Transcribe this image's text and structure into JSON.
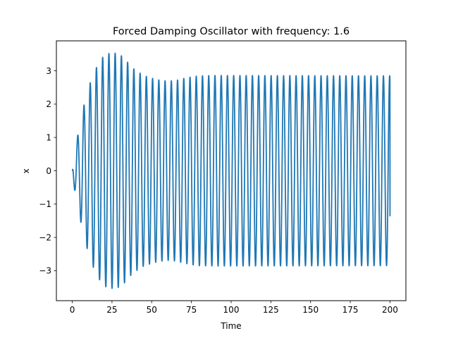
{
  "chart_data": {
    "type": "line",
    "title": "Forced Damping Oscillator with frequency: 1.6",
    "xlabel": "Time",
    "ylabel": "x",
    "xlim": [
      -10,
      210
    ],
    "ylim": [
      -3.9,
      3.9
    ],
    "xticks": [
      0,
      25,
      50,
      75,
      100,
      125,
      150,
      175,
      200
    ],
    "yticks": [
      -3,
      -2,
      -1,
      0,
      1,
      2,
      3
    ],
    "ytick_labels": [
      "−3",
      "−2",
      "−1",
      "0",
      "1",
      "2",
      "3"
    ],
    "grid": false,
    "series": [
      {
        "color": "#1f77b4",
        "model": {
          "t_start": 0,
          "t_end": 200,
          "forcing_frequency": 1.6,
          "steady_amplitude": 2.85,
          "final_value": -1.37
        },
        "samples": [
          {
            "t": 0,
            "x": 0.0
          },
          {
            "t": 0.9,
            "x": 0.36
          },
          {
            "t": 2.5,
            "x": -0.92
          },
          {
            "t": 5.0,
            "x": 1.42
          },
          {
            "t": 6.8,
            "x": -1.88
          },
          {
            "t": 9.0,
            "x": 2.27
          },
          {
            "t": 11.0,
            "x": -2.6
          },
          {
            "t": 12.9,
            "x": 2.86
          },
          {
            "t": 14.8,
            "x": -3.07
          },
          {
            "t": 16.8,
            "x": 3.25
          },
          {
            "t": 18.9,
            "x": -3.4
          },
          {
            "t": 21.0,
            "x": 3.48
          },
          {
            "t": 23.0,
            "x": -3.52
          },
          {
            "t": 25.0,
            "x": 3.53
          },
          {
            "t": 27.0,
            "x": -3.53
          },
          {
            "t": 29.0,
            "x": 3.5
          },
          {
            "t": 31.0,
            "x": -3.45
          },
          {
            "t": 33.0,
            "x": 3.36
          },
          {
            "t": 35.0,
            "x": -3.25
          },
          {
            "t": 37.0,
            "x": 3.12
          },
          {
            "t": 39.0,
            "x": -3.05
          },
          {
            "t": 41.0,
            "x": 2.98
          },
          {
            "t": 45.0,
            "x": -2.85
          },
          {
            "t": 55.0,
            "x": 2.72
          },
          {
            "t": 60.0,
            "x": -2.69
          },
          {
            "t": 65.0,
            "x": 2.71
          },
          {
            "t": 75.0,
            "x": -2.82
          },
          {
            "t": 80.0,
            "x": 2.84
          },
          {
            "t": 100.0,
            "x": -2.86
          },
          {
            "t": 150.0,
            "x": 2.85
          },
          {
            "t": 198.5,
            "x": 2.85
          },
          {
            "t": 199.5,
            "x": -2.8
          },
          {
            "t": 200.0,
            "x": -1.37
          }
        ]
      }
    ]
  }
}
